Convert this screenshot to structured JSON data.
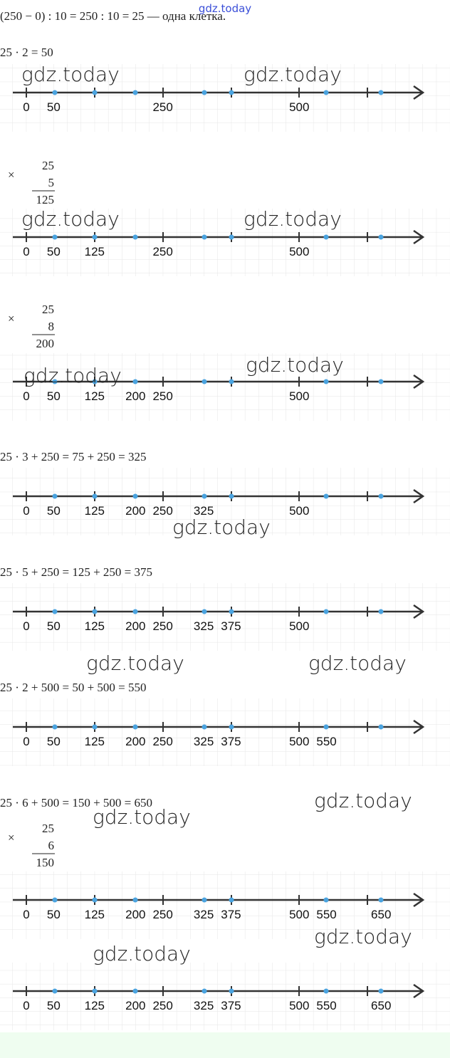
{
  "header": {
    "cut_text": "(250 − 0) : 10 = 250 : 10 = 25 — одна клетка.",
    "site": "gdz.today"
  },
  "sections": [
    {
      "formula": "25 · 2 = 50",
      "labels": [
        0,
        50,
        250,
        500
      ]
    },
    {
      "multiplication": {
        "sign": "×",
        "factor1": 25,
        "factor2": 5,
        "product": 125
      },
      "labels": [
        0,
        50,
        125,
        250,
        500
      ]
    },
    {
      "multiplication": {
        "sign": "×",
        "factor1": 25,
        "factor2": 8,
        "product": 200
      },
      "labels": [
        0,
        50,
        125,
        200,
        250,
        500
      ]
    },
    {
      "formula": "25 · 3 + 250 = 75 + 250 = 325",
      "labels": [
        0,
        50,
        125,
        200,
        250,
        325,
        500
      ]
    },
    {
      "formula": "25 · 5 + 250 = 125 + 250 = 375",
      "labels": [
        0,
        50,
        125,
        200,
        250,
        325,
        375,
        500
      ]
    },
    {
      "formula": "25 · 2 + 500 = 50 + 500 = 550",
      "labels": [
        0,
        50,
        125,
        200,
        250,
        325,
        375,
        500,
        550
      ]
    },
    {
      "formula": "25 · 6 + 500 = 150 + 500 = 650",
      "multiplication": {
        "sign": "×",
        "factor1": 25,
        "factor2": 6,
        "product": 150
      },
      "labels": [
        0,
        50,
        125,
        200,
        250,
        325,
        375,
        500,
        550,
        650
      ]
    },
    {
      "labels": [
        0,
        50,
        125,
        200,
        250,
        325,
        375,
        500,
        550,
        650
      ]
    }
  ],
  "watermarks": [
    "gdz.today",
    "gdz.today",
    "gdz.today",
    "gdz.today",
    "gdz.today",
    "gdz.today",
    "gdz.today",
    "gdz.today",
    "gdz.today",
    "gdz.today",
    "gdz.today",
    "gdz.today",
    "gdz.today",
    "gdz.today"
  ]
}
